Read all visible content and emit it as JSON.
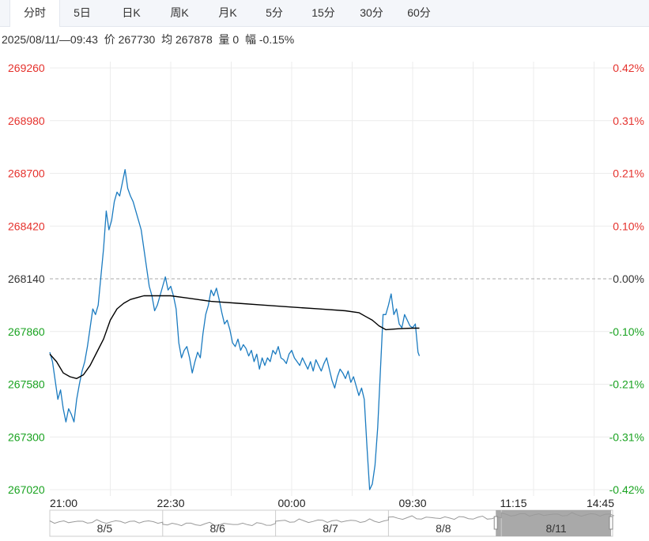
{
  "tabs": [
    {
      "label": "分时",
      "active": true
    },
    {
      "label": "5日"
    },
    {
      "label": "日K"
    },
    {
      "label": "周K"
    },
    {
      "label": "月K"
    },
    {
      "label": "5分"
    },
    {
      "label": "15分"
    },
    {
      "label": "30分"
    },
    {
      "label": "60分"
    }
  ],
  "info": {
    "datetime": "2025/08/11/—09:43",
    "price_label": "价",
    "price": "267730",
    "avg_label": "均",
    "avg": "267878",
    "volume_label": "量",
    "volume": "0",
    "change_label": "幅",
    "change": "-0.15%"
  },
  "colors": {
    "up": "#e5322d",
    "down": "#1aa321",
    "neutral": "#333333",
    "price_line": "#1b7bc0",
    "avg_line": "#000000",
    "grid": "#ececec",
    "navigator_fill": "#a0a0a0"
  },
  "chart_data": {
    "type": "line",
    "prev_close": 268140,
    "ylim": [
      267020,
      269260
    ],
    "y_ticks_left": [
      "269260",
      "268980",
      "268700",
      "268420",
      "268140",
      "267860",
      "267580",
      "267300",
      "267020"
    ],
    "y_ticks_right": [
      "0.42%",
      "0.31%",
      "0.21%",
      "0.10%",
      "0.00%",
      "-0.10%",
      "-0.21%",
      "-0.31%",
      "-0.42%"
    ],
    "x_ticks": [
      "21:00",
      "22:30",
      "00:00",
      "09:30",
      "11:15",
      "14:45"
    ],
    "x_tick_index": [
      0,
      90,
      180,
      270,
      345,
      420
    ],
    "total_points": 420,
    "grid": true,
    "series": [
      {
        "points": [
          [
            0,
            267750
          ],
          [
            2,
            267700
          ],
          [
            4,
            267600
          ],
          [
            6,
            267500
          ],
          [
            8,
            267550
          ],
          [
            10,
            267450
          ],
          [
            12,
            267380
          ],
          [
            14,
            267450
          ],
          [
            16,
            267420
          ],
          [
            18,
            267380
          ],
          [
            20,
            267500
          ],
          [
            22,
            267580
          ],
          [
            24,
            267650
          ],
          [
            26,
            267700
          ],
          [
            28,
            267780
          ],
          [
            30,
            267880
          ],
          [
            32,
            267980
          ],
          [
            34,
            267950
          ],
          [
            36,
            268000
          ],
          [
            38,
            268150
          ],
          [
            40,
            268300
          ],
          [
            42,
            268500
          ],
          [
            44,
            268400
          ],
          [
            46,
            268450
          ],
          [
            48,
            268550
          ],
          [
            50,
            268600
          ],
          [
            52,
            268580
          ],
          [
            54,
            268650
          ],
          [
            56,
            268720
          ],
          [
            58,
            268620
          ],
          [
            60,
            268580
          ],
          [
            62,
            268550
          ],
          [
            64,
            268500
          ],
          [
            66,
            268450
          ],
          [
            68,
            268400
          ],
          [
            70,
            268300
          ],
          [
            72,
            268200
          ],
          [
            74,
            268100
          ],
          [
            76,
            268050
          ],
          [
            78,
            267970
          ],
          [
            80,
            268000
          ],
          [
            82,
            268050
          ],
          [
            84,
            268100
          ],
          [
            86,
            268150
          ],
          [
            88,
            268080
          ],
          [
            90,
            268100
          ],
          [
            92,
            268050
          ],
          [
            94,
            267980
          ],
          [
            96,
            267800
          ],
          [
            98,
            267720
          ],
          [
            100,
            267760
          ],
          [
            102,
            267780
          ],
          [
            104,
            267720
          ],
          [
            106,
            267640
          ],
          [
            108,
            267700
          ],
          [
            110,
            267750
          ],
          [
            112,
            267720
          ],
          [
            114,
            267850
          ],
          [
            116,
            267950
          ],
          [
            118,
            268000
          ],
          [
            120,
            268080
          ],
          [
            122,
            268050
          ],
          [
            124,
            268090
          ],
          [
            126,
            268030
          ],
          [
            128,
            267960
          ],
          [
            130,
            267900
          ],
          [
            132,
            267920
          ],
          [
            134,
            267870
          ],
          [
            136,
            267800
          ],
          [
            138,
            267780
          ],
          [
            140,
            267820
          ],
          [
            142,
            267760
          ],
          [
            144,
            267790
          ],
          [
            146,
            267770
          ],
          [
            148,
            267730
          ],
          [
            150,
            267760
          ],
          [
            152,
            267700
          ],
          [
            154,
            267740
          ],
          [
            156,
            267660
          ],
          [
            158,
            267720
          ],
          [
            160,
            267680
          ],
          [
            162,
            267720
          ],
          [
            164,
            267700
          ],
          [
            166,
            267760
          ],
          [
            168,
            267740
          ],
          [
            170,
            267780
          ],
          [
            172,
            267720
          ],
          [
            174,
            267710
          ],
          [
            176,
            267690
          ],
          [
            178,
            267740
          ],
          [
            180,
            267760
          ],
          [
            182,
            267720
          ],
          [
            184,
            267700
          ],
          [
            186,
            267680
          ],
          [
            188,
            267720
          ],
          [
            190,
            267690
          ],
          [
            192,
            267660
          ],
          [
            194,
            267700
          ],
          [
            196,
            267650
          ],
          [
            198,
            267710
          ],
          [
            200,
            267680
          ],
          [
            202,
            267650
          ],
          [
            204,
            267690
          ],
          [
            206,
            267720
          ],
          [
            208,
            267660
          ],
          [
            210,
            267600
          ],
          [
            212,
            267560
          ],
          [
            214,
            267620
          ],
          [
            216,
            267660
          ],
          [
            218,
            267640
          ],
          [
            220,
            267610
          ],
          [
            222,
            267650
          ],
          [
            224,
            267590
          ],
          [
            226,
            267620
          ],
          [
            228,
            267570
          ],
          [
            230,
            267520
          ],
          [
            232,
            267560
          ],
          [
            234,
            267500
          ],
          [
            236,
            267250
          ],
          [
            238,
            267020
          ],
          [
            240,
            267050
          ],
          [
            242,
            267150
          ],
          [
            244,
            267350
          ],
          [
            246,
            267650
          ],
          [
            248,
            267950
          ],
          [
            250,
            267950
          ],
          [
            252,
            268000
          ],
          [
            254,
            268060
          ],
          [
            256,
            267950
          ],
          [
            258,
            267980
          ],
          [
            260,
            267900
          ],
          [
            262,
            267880
          ],
          [
            264,
            267950
          ],
          [
            266,
            267920
          ],
          [
            268,
            267890
          ],
          [
            270,
            267880
          ],
          [
            272,
            267900
          ],
          [
            274,
            267750
          ],
          [
            275,
            267730
          ]
        ]
      },
      {
        "points": [
          [
            0,
            267740
          ],
          [
            5,
            267700
          ],
          [
            10,
            267640
          ],
          [
            15,
            267620
          ],
          [
            20,
            267610
          ],
          [
            25,
            267630
          ],
          [
            30,
            267680
          ],
          [
            35,
            267750
          ],
          [
            40,
            267820
          ],
          [
            45,
            267920
          ],
          [
            50,
            267980
          ],
          [
            55,
            268010
          ],
          [
            60,
            268030
          ],
          [
            65,
            268040
          ],
          [
            70,
            268050
          ],
          [
            80,
            268050
          ],
          [
            90,
            268050
          ],
          [
            100,
            268040
          ],
          [
            110,
            268030
          ],
          [
            120,
            268020
          ],
          [
            140,
            268010
          ],
          [
            160,
            268000
          ],
          [
            180,
            267990
          ],
          [
            200,
            267980
          ],
          [
            220,
            267970
          ],
          [
            230,
            267960
          ],
          [
            235,
            267940
          ],
          [
            240,
            267920
          ],
          [
            245,
            267890
          ],
          [
            250,
            267870
          ],
          [
            260,
            267875
          ],
          [
            270,
            267878
          ],
          [
            275,
            267878
          ]
        ]
      }
    ]
  },
  "navigator": {
    "labels": [
      "8/5",
      "8/6",
      "8/7",
      "8/8",
      "8/11"
    ]
  }
}
